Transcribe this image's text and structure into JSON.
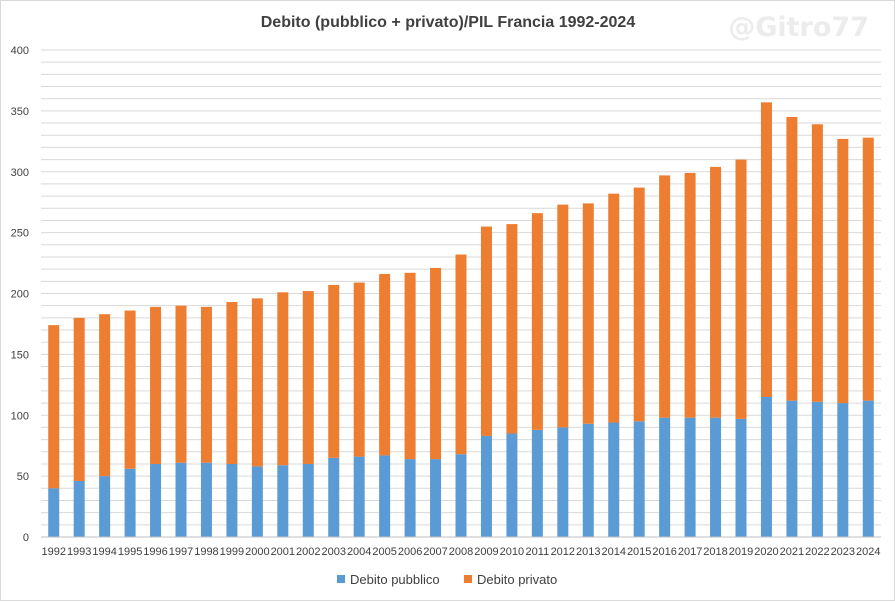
{
  "chart_data": {
    "type": "bar",
    "stacked": true,
    "title": "Debito (pubblico + privato)/PIL Francia 1992-2024",
    "watermark": "@Gitro77",
    "xlabel": "",
    "ylabel": "",
    "ylim": [
      0,
      400
    ],
    "yticks": [
      0,
      50,
      100,
      150,
      200,
      250,
      300,
      350,
      400
    ],
    "grid": true,
    "legend_position": "bottom",
    "categories": [
      "1992",
      "1993",
      "1994",
      "1995",
      "1996",
      "1997",
      "1998",
      "1999",
      "2000",
      "2001",
      "2002",
      "2003",
      "2004",
      "2005",
      "2006",
      "2007",
      "2008",
      "2009",
      "2010",
      "2011",
      "2012",
      "2013",
      "2014",
      "2015",
      "2016",
      "2017",
      "2018",
      "2019",
      "2020",
      "2021",
      "2022",
      "2023",
      "2024"
    ],
    "series": [
      {
        "name": "Debito pubblico",
        "color": "#5b9bd5",
        "values": [
          40,
          46,
          50,
          56,
          60,
          61,
          61,
          60,
          58,
          59,
          60,
          65,
          66,
          67,
          64,
          64,
          68,
          83,
          85,
          88,
          90,
          93,
          94,
          95,
          98,
          98,
          98,
          97,
          115,
          112,
          111,
          110,
          112
        ]
      },
      {
        "name": "Debito privato",
        "color": "#ed7d31",
        "values": [
          134,
          134,
          133,
          130,
          129,
          129,
          128,
          133,
          138,
          142,
          142,
          142,
          143,
          149,
          153,
          157,
          164,
          172,
          172,
          178,
          183,
          181,
          188,
          192,
          199,
          201,
          206,
          213,
          242,
          233,
          228,
          217,
          216
        ]
      }
    ]
  }
}
